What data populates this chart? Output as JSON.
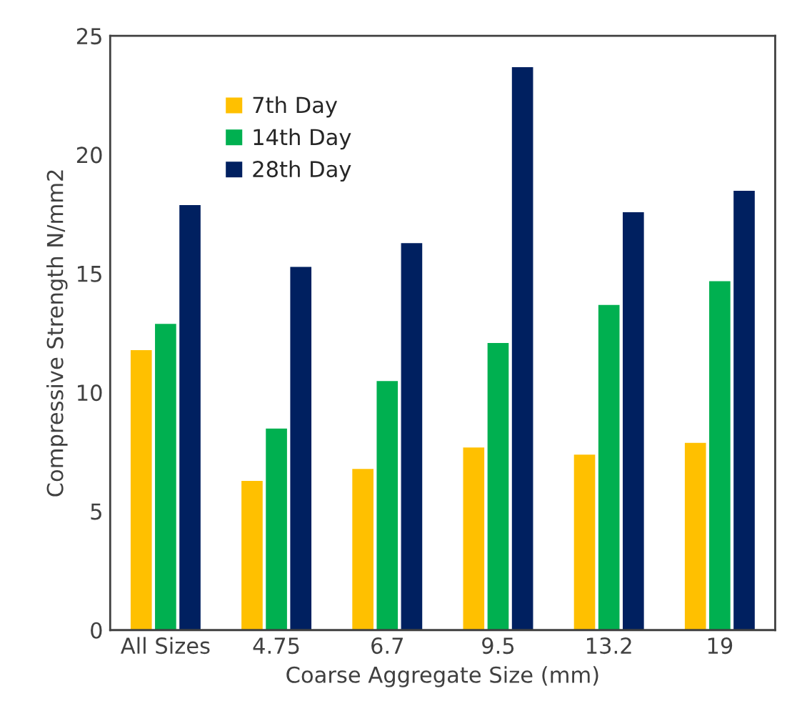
{
  "chart_data": {
    "type": "bar",
    "xlabel": "Coarse Aggregate Size (mm)",
    "ylabel": "Compressive Strength N/mm2",
    "categories": [
      "All Sizes",
      "4.75",
      "6.7",
      "9.5",
      "13.2",
      "19"
    ],
    "series": [
      {
        "name": "7th Day",
        "color": "#ffc000",
        "values": [
          11.8,
          6.3,
          6.8,
          7.7,
          7.4,
          7.9
        ]
      },
      {
        "name": "14th Day",
        "color": "#00b050",
        "values": [
          12.9,
          8.5,
          10.5,
          12.1,
          13.7,
          14.7
        ]
      },
      {
        "name": "28th Day",
        "color": "#002060",
        "values": [
          17.9,
          15.3,
          16.3,
          23.7,
          17.6,
          18.5
        ]
      }
    ],
    "ylim": [
      0,
      25
    ],
    "yticks": [
      0,
      5,
      10,
      15,
      20,
      25
    ],
    "grid": false,
    "legend": "top left"
  }
}
